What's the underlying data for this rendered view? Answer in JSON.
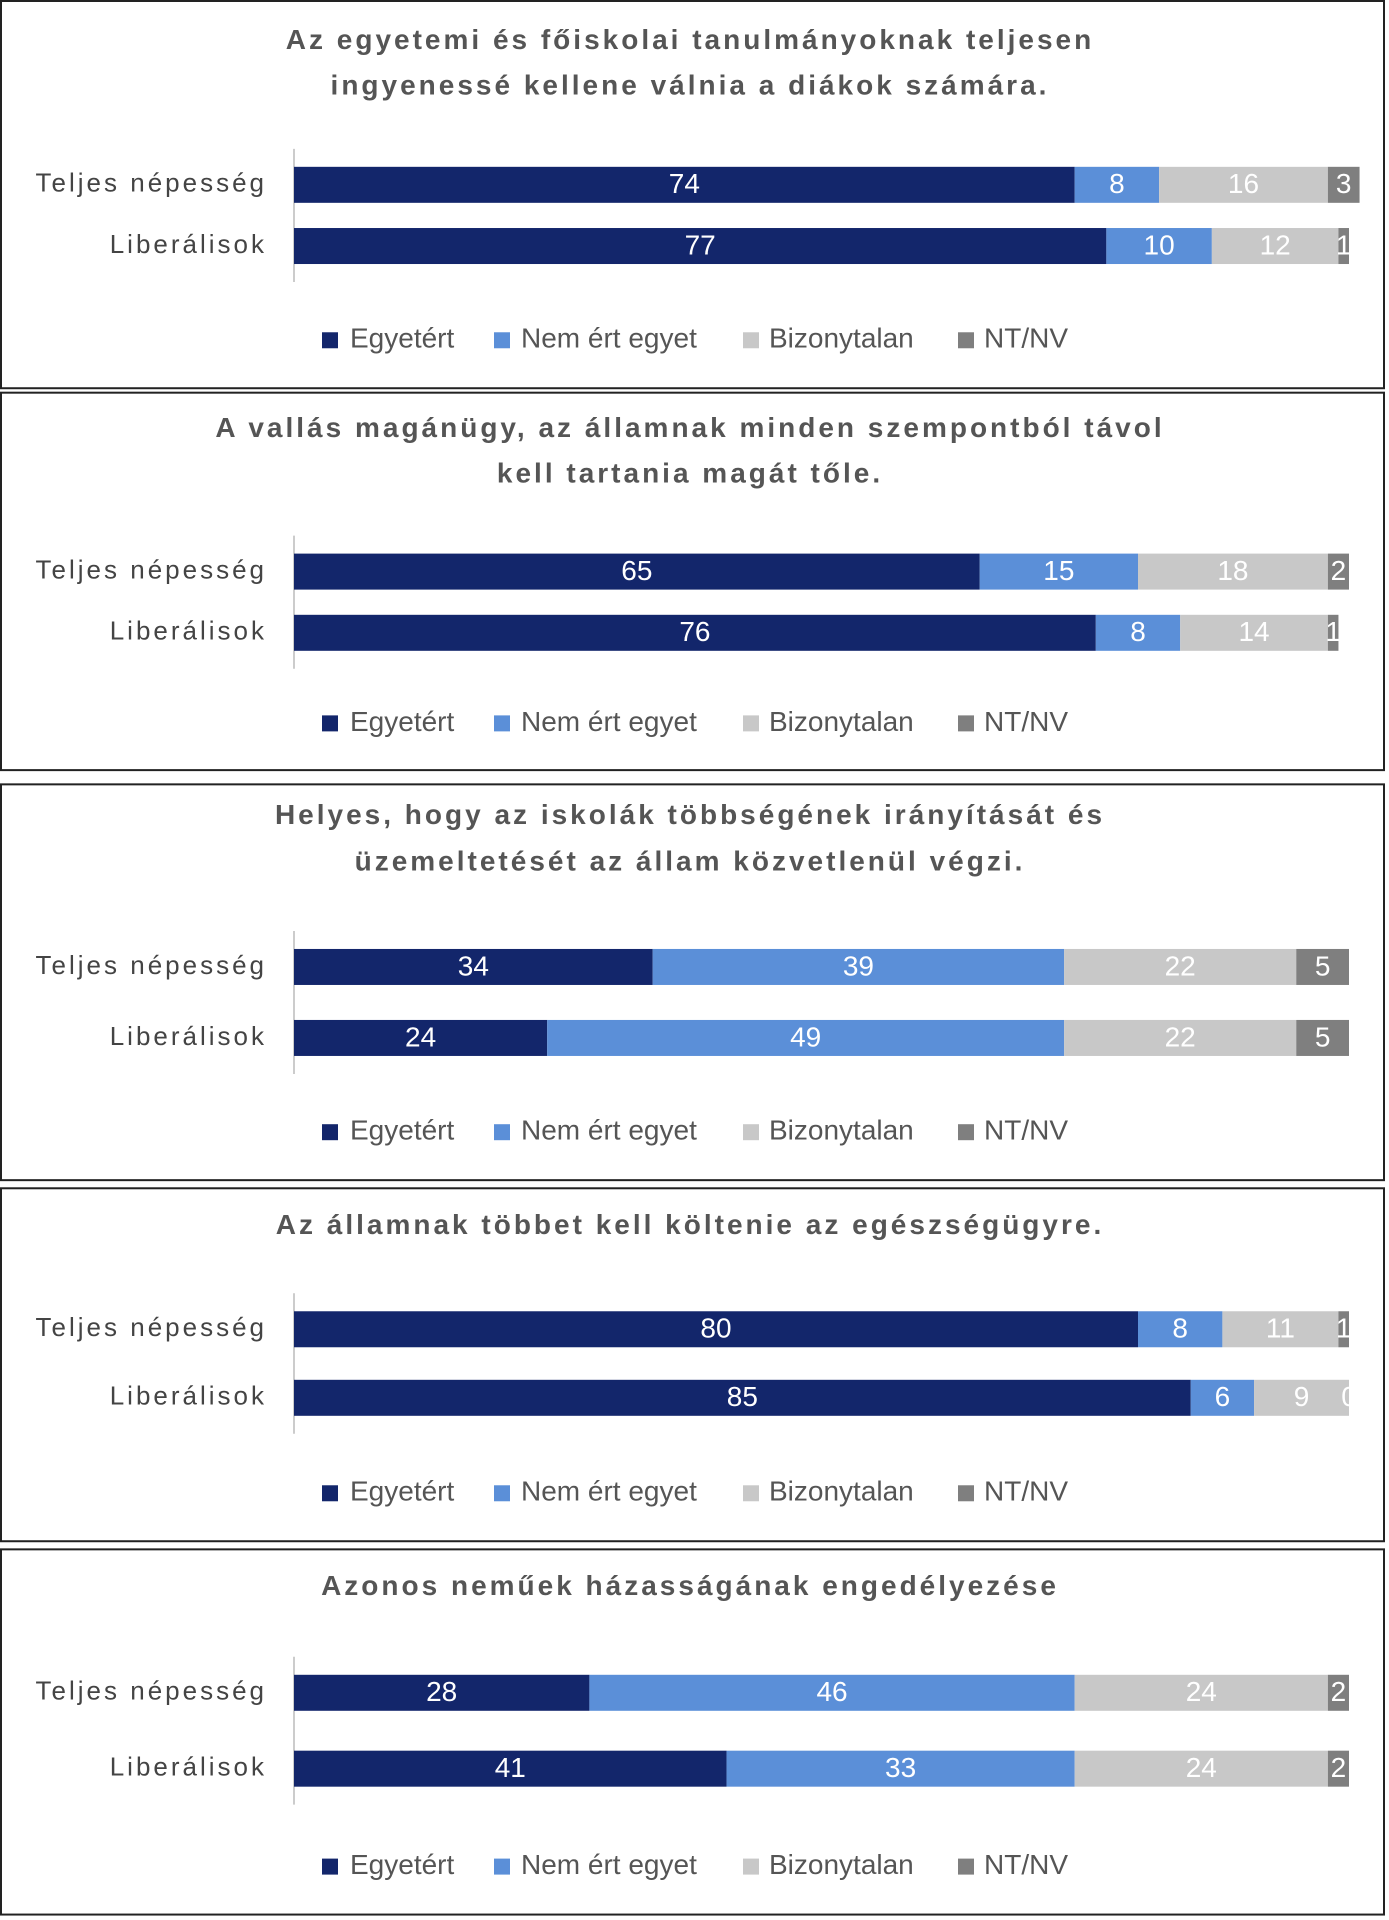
{
  "chart_data": [
    {
      "type": "bar",
      "orientation": "horizontal",
      "stacked": true,
      "title": [
        "Az egyetemi és főiskolai tanulmányoknak teljesen",
        "ingyenessé kellene válnia a diákok számára."
      ],
      "categories": [
        "Teljes népesség",
        "Liberálisok"
      ],
      "xlim": [
        0,
        100
      ],
      "series": [
        {
          "name": "Egyetért",
          "color": "#13266b",
          "values": [
            74,
            77
          ]
        },
        {
          "name": "Nem ért egyet",
          "color": "#5b8fd8",
          "values": [
            8,
            10
          ]
        },
        {
          "name": "Bizonytalan",
          "color": "#c8c8c8",
          "values": [
            16,
            12
          ]
        },
        {
          "name": "NT/NV",
          "color": "#7f7f7f",
          "values": [
            3,
            1
          ]
        }
      ]
    },
    {
      "type": "bar",
      "orientation": "horizontal",
      "stacked": true,
      "title": [
        "A vallás magánügy, az államnak minden szempontból távol",
        "kell tartania magát tőle."
      ],
      "categories": [
        "Teljes népesség",
        "Liberálisok"
      ],
      "xlim": [
        0,
        100
      ],
      "series": [
        {
          "name": "Egyetért",
          "color": "#13266b",
          "values": [
            65,
            76
          ]
        },
        {
          "name": "Nem ért egyet",
          "color": "#5b8fd8",
          "values": [
            15,
            8
          ]
        },
        {
          "name": "Bizonytalan",
          "color": "#c8c8c8",
          "values": [
            18,
            14
          ]
        },
        {
          "name": "NT/NV",
          "color": "#7f7f7f",
          "values": [
            2,
            1
          ]
        }
      ]
    },
    {
      "type": "bar",
      "orientation": "horizontal",
      "stacked": true,
      "title": [
        "Helyes, hogy az iskolák többségének irányítását és",
        "üzemeltetését az állam közvetlenül végzi."
      ],
      "categories": [
        "Teljes népesség",
        "Liberálisok"
      ],
      "xlim": [
        0,
        100
      ],
      "series": [
        {
          "name": "Egyetért",
          "color": "#13266b",
          "values": [
            34,
            24
          ]
        },
        {
          "name": "Nem ért egyet",
          "color": "#5b8fd8",
          "values": [
            39,
            49
          ]
        },
        {
          "name": "Bizonytalan",
          "color": "#c8c8c8",
          "values": [
            22,
            22
          ]
        },
        {
          "name": "NT/NV",
          "color": "#7f7f7f",
          "values": [
            5,
            5
          ]
        }
      ]
    },
    {
      "type": "bar",
      "orientation": "horizontal",
      "stacked": true,
      "title": [
        "Az államnak többet kell költenie az egészségügyre."
      ],
      "categories": [
        "Teljes népesség",
        "Liberálisok"
      ],
      "xlim": [
        0,
        100
      ],
      "series": [
        {
          "name": "Egyetért",
          "color": "#13266b",
          "values": [
            80,
            85
          ]
        },
        {
          "name": "Nem ért egyet",
          "color": "#5b8fd8",
          "values": [
            8,
            6
          ]
        },
        {
          "name": "Bizonytalan",
          "color": "#c8c8c8",
          "values": [
            11,
            9
          ]
        },
        {
          "name": "NT/NV",
          "color": "#7f7f7f",
          "values": [
            1,
            0
          ]
        }
      ]
    },
    {
      "type": "bar",
      "orientation": "horizontal",
      "stacked": true,
      "title": [
        "Azonos neműek házasságának engedélyezése"
      ],
      "categories": [
        "Teljes népesség",
        "Liberálisok"
      ],
      "xlim": [
        0,
        100
      ],
      "series": [
        {
          "name": "Egyetért",
          "color": "#13266b",
          "values": [
            28,
            41
          ]
        },
        {
          "name": "Nem ért egyet",
          "color": "#5b8fd8",
          "values": [
            46,
            33
          ]
        },
        {
          "name": "Bizonytalan",
          "color": "#c8c8c8",
          "values": [
            24,
            24
          ]
        },
        {
          "name": "NT/NV",
          "color": "#7f7f7f",
          "values": [
            2,
            2
          ]
        }
      ]
    }
  ]
}
